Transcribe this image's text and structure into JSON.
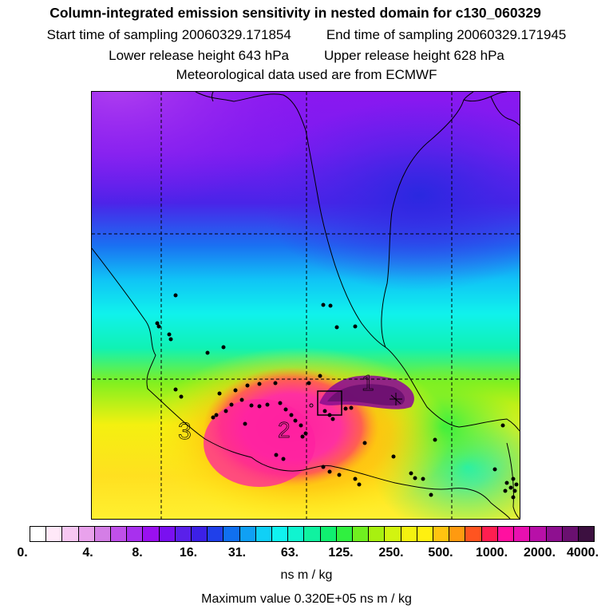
{
  "title": "Column-integrated emission sensitivity in nested domain for c130_060329",
  "sampling": {
    "start_label": "Start time of sampling 20060329.171854",
    "end_label": "End time of sampling 20060329.171945"
  },
  "release": {
    "lower_label": "Lower release height  643 hPa",
    "upper_label": "Upper release height  628 hPa"
  },
  "met_label": "Meteorological data used are from ECMWF",
  "map_labels": {
    "label_1": "1",
    "label_2": "2",
    "label_3": "3"
  },
  "colorbar": {
    "colors": [
      "#ffffff",
      "#ffe8f8",
      "#f6c8f2",
      "#e9a2ec",
      "#d47ee6",
      "#c050ea",
      "#a830ee",
      "#9a10f0",
      "#7a10f0",
      "#5a20ea",
      "#3c20e6",
      "#2040ea",
      "#1070f0",
      "#10a0f4",
      "#10d0f6",
      "#10f2f0",
      "#10f4d0",
      "#10f2a0",
      "#10f070",
      "#30f040",
      "#70f020",
      "#a8f010",
      "#d2f410",
      "#f4f210",
      "#fff010",
      "#ffc410",
      "#ff9a10",
      "#ff5420",
      "#ff1e50",
      "#ff10a0",
      "#e810b0",
      "#b810a8",
      "#8e1090",
      "#6a1070",
      "#3c1040"
    ],
    "tick_labels": [
      "0.",
      "4.",
      "8.",
      "16.",
      "31.",
      "63.",
      "125.",
      "250.",
      "500.",
      "1000.",
      "2000.",
      "4000."
    ],
    "units": "ns m / kg"
  },
  "max_value_label": "Maximum value  0.320E+05 ns m / kg"
}
